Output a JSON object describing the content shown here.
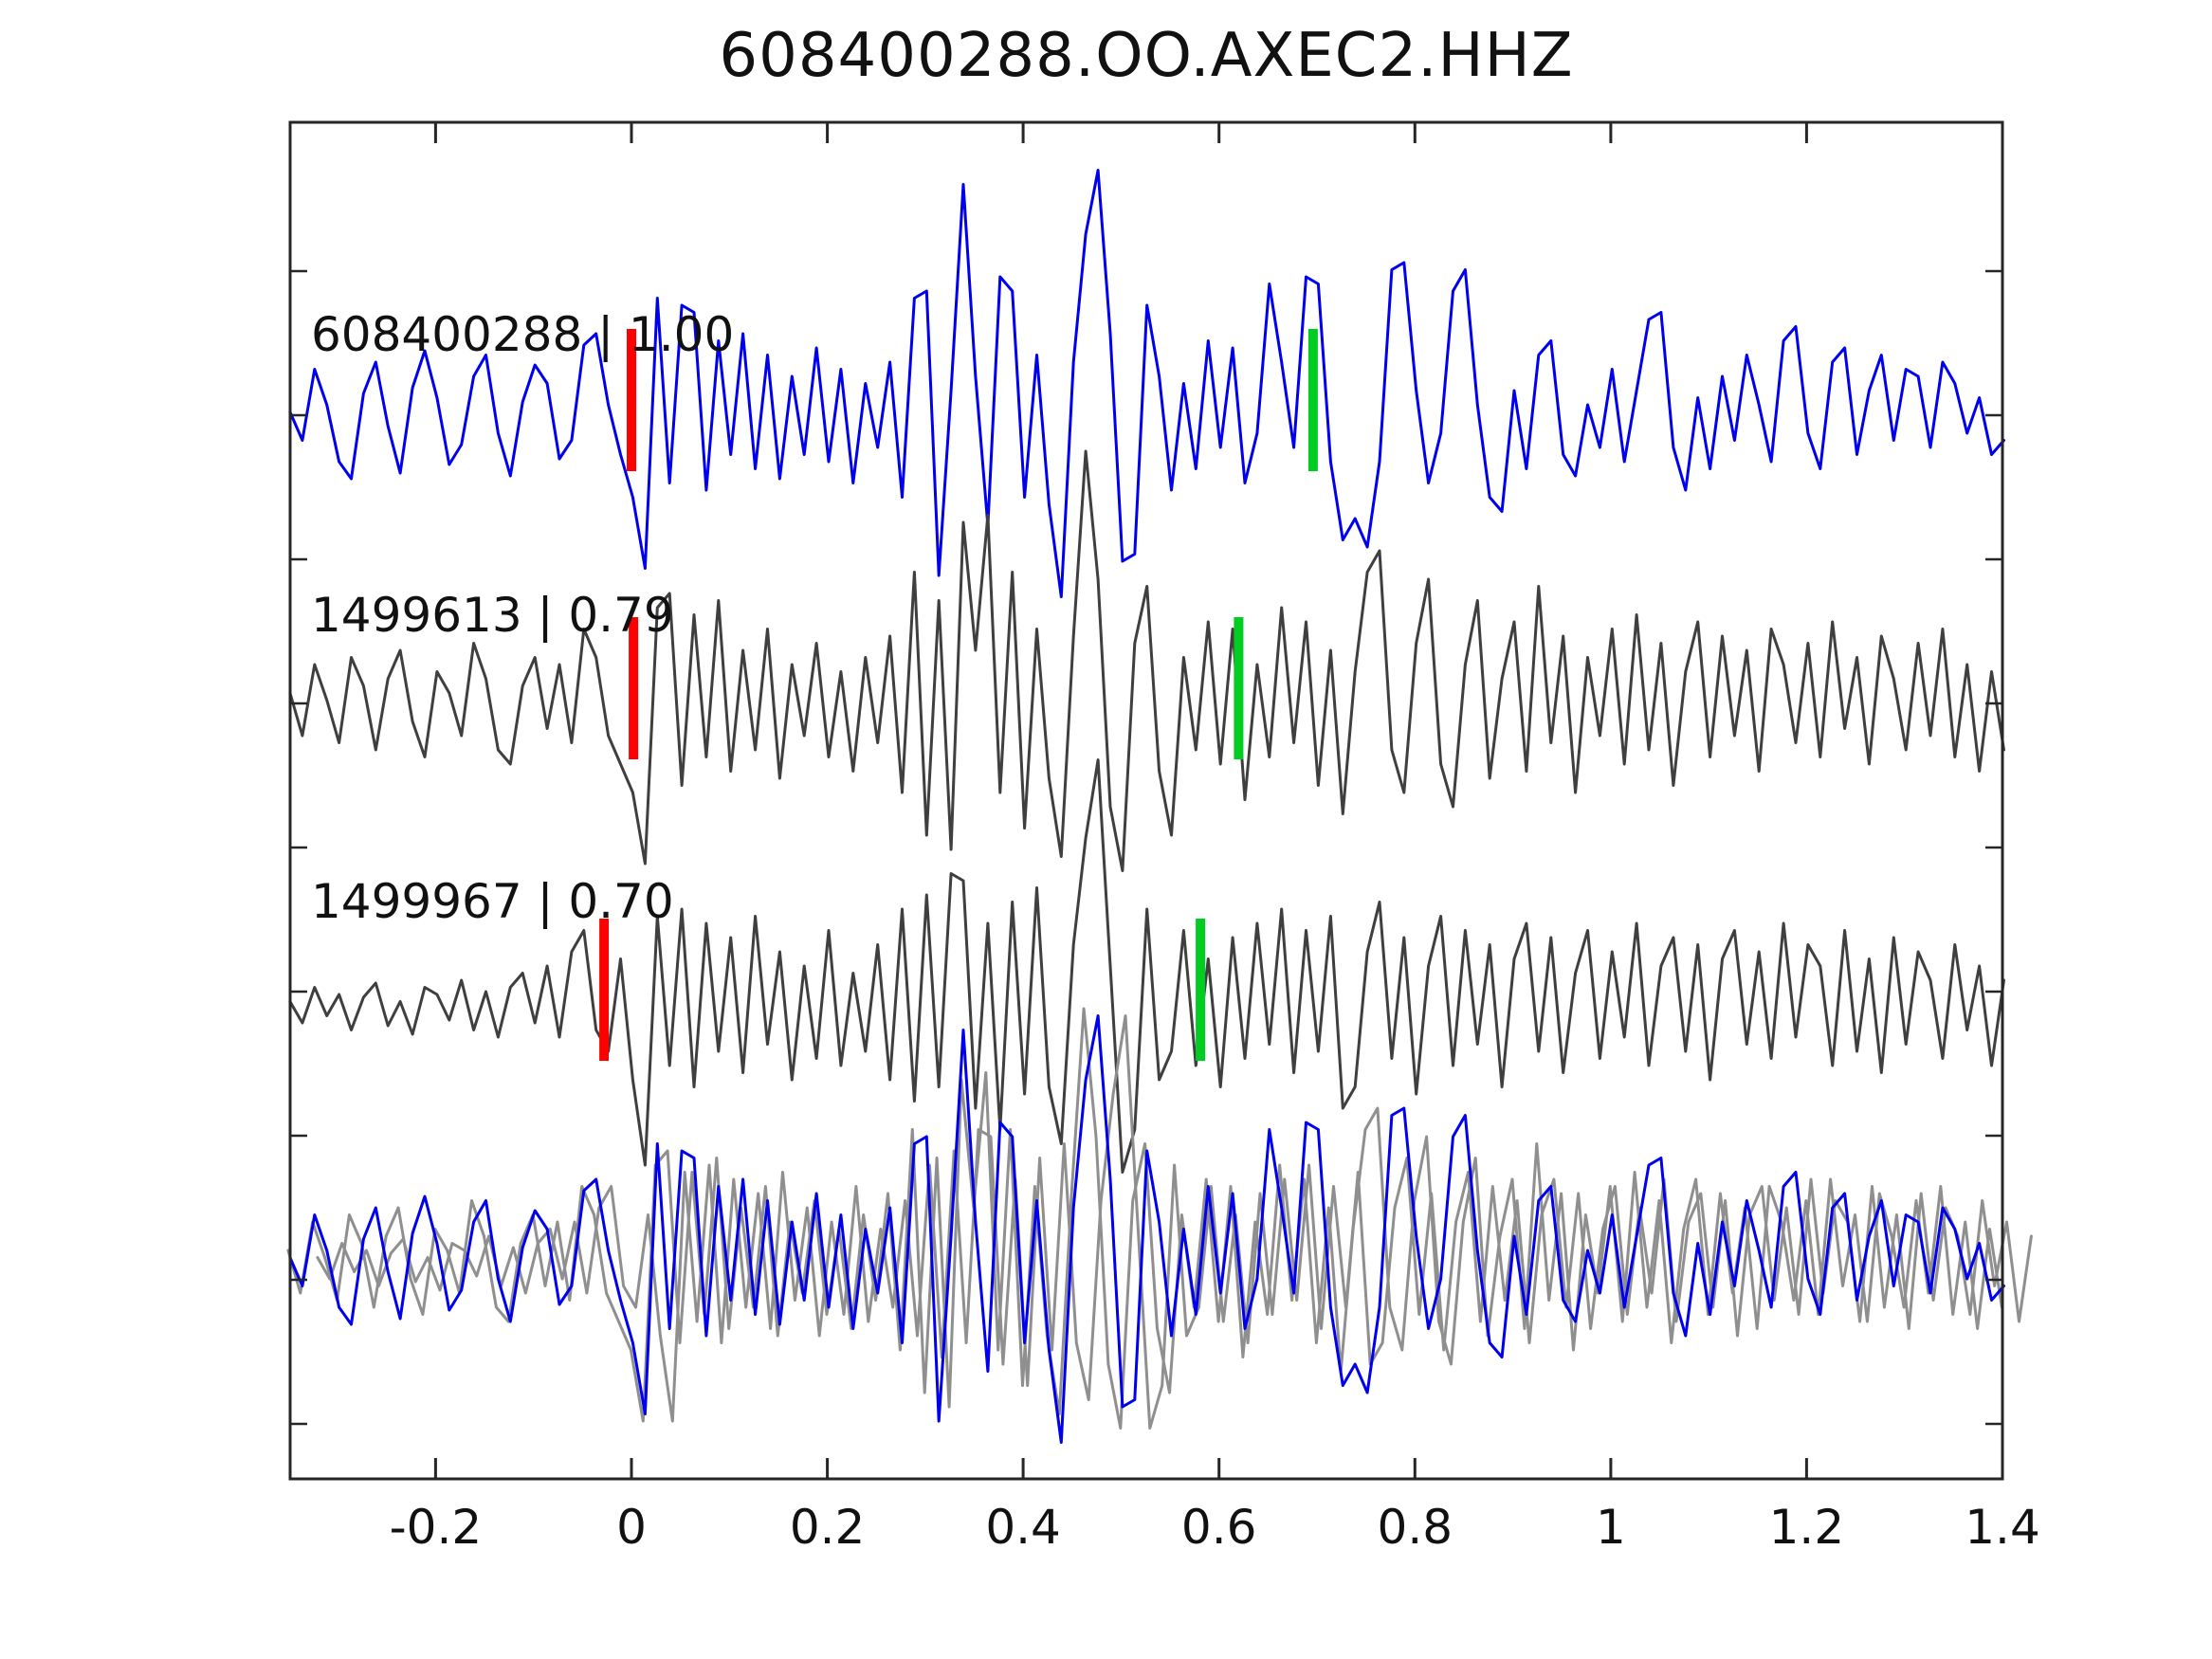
{
  "figure_title": "608400288.OO.AXEC2.HHZ",
  "colors": {
    "template_blue": "#0000ee",
    "detection_gray": "#3f3f3f",
    "overlay_gray": "#8f8f8f",
    "pick_red": "#ff0000",
    "pick_green": "#00cc22",
    "frame": "#262626",
    "text": "#111111"
  },
  "chart_data": {
    "type": "line",
    "title": "608400288.OO.AXEC2.HHZ",
    "xlabel": "",
    "ylabel": "",
    "xlim": [
      -0.3486,
      1.4
    ],
    "grid": false,
    "legend": "none",
    "x_ticks": [
      {
        "value": -0.2,
        "label": "-0.2"
      },
      {
        "value": 0.0,
        "label": "0"
      },
      {
        "value": 0.2,
        "label": "0.2"
      },
      {
        "value": 0.4,
        "label": "0.4"
      },
      {
        "value": 0.6,
        "label": "0.6"
      },
      {
        "value": 0.8,
        "label": "0.8"
      },
      {
        "value": 1.0,
        "label": "1"
      },
      {
        "value": 1.2,
        "label": "1.2"
      },
      {
        "value": 1.4,
        "label": "1.4"
      }
    ],
    "y_ticks_unlabeled": true,
    "sampling": {
      "x0": -0.3486,
      "dx": 0.0125,
      "n": 141
    },
    "traces": [
      {
        "id": "608400288",
        "correlation": "1.00",
        "label": "608400288 | 1.00",
        "role": "template",
        "color_key": "template_blue",
        "pick_red_x": 0.0,
        "pick_green_x": 0.696,
        "values": [
          0.05,
          -0.15,
          0.35,
          0.1,
          -0.3,
          -0.42,
          0.18,
          0.4,
          -0.05,
          -0.38,
          0.22,
          0.48,
          0.15,
          -0.32,
          -0.18,
          0.3,
          0.45,
          -0.1,
          -0.4,
          0.12,
          0.38,
          0.25,
          -0.28,
          -0.15,
          0.52,
          0.6,
          0.1,
          -0.25,
          -0.55,
          -1.05,
          0.85,
          -0.45,
          0.8,
          0.75,
          -0.5,
          0.55,
          -0.25,
          0.6,
          -0.35,
          0.45,
          -0.42,
          0.3,
          -0.25,
          0.5,
          -0.3,
          0.35,
          -0.45,
          0.25,
          -0.2,
          0.4,
          -0.55,
          0.85,
          0.9,
          -1.1,
          0.2,
          1.65,
          0.3,
          -0.75,
          1.0,
          0.9,
          -0.55,
          0.45,
          -0.6,
          -1.25,
          0.4,
          1.3,
          1.75,
          0.6,
          -1.0,
          -0.95,
          0.8,
          0.3,
          -0.5,
          0.25,
          -0.35,
          0.55,
          -0.2,
          0.5,
          -0.45,
          -0.1,
          0.95,
          0.4,
          -0.2,
          1.0,
          0.95,
          -0.3,
          -0.85,
          -0.7,
          -0.9,
          -0.3,
          1.05,
          1.1,
          0.2,
          -0.45,
          -0.1,
          0.9,
          1.05,
          0.1,
          -0.55,
          -0.65,
          0.2,
          -0.35,
          0.45,
          0.55,
          -0.25,
          -0.4,
          0.1,
          -0.2,
          0.35,
          -0.3,
          0.2,
          0.7,
          0.75,
          -0.2,
          -0.5,
          0.15,
          -0.35,
          0.3,
          -0.15,
          0.45,
          0.1,
          -0.3,
          0.55,
          0.65,
          -0.1,
          -0.35,
          0.4,
          0.5,
          -0.25,
          0.2,
          0.45,
          -0.15,
          0.35,
          0.3,
          -0.2,
          0.4,
          0.25,
          -0.1,
          0.15,
          -0.25,
          -0.15
        ]
      },
      {
        "id": "1499613",
        "correlation": "0.79",
        "label": "1499613 | 0.79",
        "role": "detection",
        "color_key": "detection_gray",
        "pick_red_x": 0.002,
        "pick_green_x": 0.62,
        "values": [
          0.1,
          -0.2,
          0.3,
          0.05,
          -0.25,
          0.35,
          0.15,
          -0.3,
          0.2,
          0.4,
          -0.1,
          -0.35,
          0.25,
          0.1,
          -0.2,
          0.45,
          0.2,
          -0.3,
          -0.4,
          0.15,
          0.35,
          -0.15,
          0.3,
          -0.25,
          0.55,
          0.35,
          -0.2,
          -0.4,
          -0.6,
          -1.1,
          0.7,
          0.8,
          -0.55,
          0.65,
          -0.35,
          0.75,
          -0.45,
          0.4,
          -0.3,
          0.55,
          -0.5,
          0.3,
          -0.2,
          0.45,
          -0.35,
          0.25,
          -0.45,
          0.35,
          -0.25,
          0.5,
          -0.6,
          0.95,
          -0.9,
          0.75,
          -1.0,
          1.3,
          0.4,
          1.35,
          -0.6,
          0.95,
          -0.85,
          0.55,
          -0.5,
          -1.05,
          0.5,
          1.8,
          0.9,
          -0.7,
          -1.15,
          0.45,
          0.85,
          -0.45,
          -0.9,
          0.35,
          -0.3,
          0.6,
          -0.4,
          0.55,
          -0.65,
          0.3,
          -0.35,
          0.7,
          -0.25,
          0.6,
          -0.55,
          0.4,
          -0.75,
          0.25,
          0.95,
          1.1,
          -0.3,
          -0.6,
          0.45,
          0.9,
          -0.4,
          -0.7,
          0.3,
          0.75,
          -0.5,
          0.2,
          0.6,
          -0.45,
          0.85,
          -0.25,
          0.5,
          -0.6,
          0.35,
          -0.2,
          0.55,
          -0.4,
          0.65,
          -0.3,
          0.45,
          -0.55,
          0.25,
          0.6,
          -0.35,
          0.5,
          -0.2,
          0.4,
          -0.45,
          0.55,
          0.3,
          -0.25,
          0.45,
          -0.35,
          0.6,
          -0.15,
          0.35,
          -0.4,
          0.5,
          0.2,
          -0.3,
          0.45,
          -0.2,
          0.55,
          -0.35,
          0.3,
          -0.45,
          0.25,
          -0.3
        ]
      },
      {
        "id": "1499967",
        "correlation": "0.70",
        "label": "1499967 | 0.70",
        "role": "detection",
        "color_key": "detection_gray",
        "pick_red_x": -0.028,
        "pick_green_x": 0.581,
        "values": [
          0.05,
          -0.1,
          0.15,
          -0.05,
          0.1,
          -0.15,
          0.08,
          0.18,
          -0.12,
          0.05,
          -0.18,
          0.15,
          0.1,
          -0.08,
          0.2,
          -0.15,
          0.12,
          -0.2,
          0.15,
          0.25,
          -0.1,
          0.3,
          -0.2,
          0.4,
          0.55,
          -0.15,
          -0.3,
          0.35,
          -0.5,
          -1.1,
          0.65,
          -0.4,
          0.7,
          -0.55,
          0.6,
          -0.3,
          0.5,
          -0.45,
          0.65,
          -0.25,
          0.4,
          -0.5,
          0.3,
          -0.35,
          0.55,
          -0.4,
          0.25,
          -0.3,
          0.45,
          -0.5,
          0.7,
          -0.65,
          0.8,
          -0.55,
          0.95,
          0.9,
          -0.7,
          0.6,
          -0.85,
          0.75,
          -0.6,
          0.85,
          -0.55,
          -0.95,
          0.45,
          1.2,
          1.75,
          0.3,
          -1.15,
          -0.85,
          0.7,
          -0.5,
          -0.3,
          0.55,
          -0.4,
          0.35,
          -0.55,
          0.5,
          -0.35,
          0.6,
          -0.25,
          0.7,
          -0.45,
          0.55,
          -0.3,
          0.65,
          -0.7,
          -0.55,
          0.4,
          0.75,
          -0.35,
          0.5,
          -0.6,
          0.3,
          0.65,
          -0.4,
          0.55,
          -0.25,
          0.45,
          -0.55,
          0.35,
          0.6,
          -0.3,
          0.5,
          -0.45,
          0.25,
          0.55,
          -0.35,
          0.4,
          -0.2,
          0.6,
          -0.4,
          0.3,
          0.5,
          -0.3,
          0.45,
          -0.5,
          0.35,
          0.55,
          -0.25,
          0.4,
          -0.35,
          0.6,
          -0.2,
          0.45,
          0.3,
          -0.4,
          0.55,
          -0.3,
          0.35,
          -0.45,
          0.5,
          -0.25,
          0.4,
          0.2,
          -0.35,
          0.45,
          -0.15,
          0.3,
          -0.4,
          0.2
        ]
      }
    ],
    "overlay_panel": {
      "description": "aligned superposition of detections (gray) and template (blue)",
      "members": [
        {
          "trace_index": 1,
          "color_key": "overlay_gray",
          "x_shift": -0.002
        },
        {
          "trace_index": 2,
          "color_key": "overlay_gray",
          "x_shift": 0.028
        },
        {
          "trace_index": 0,
          "color_key": "template_blue",
          "x_shift": 0.0
        }
      ]
    }
  }
}
